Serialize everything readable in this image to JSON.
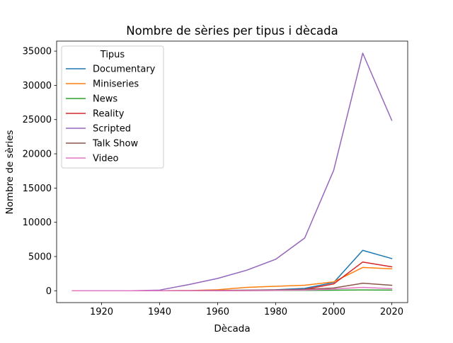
{
  "chart_data": {
    "type": "line",
    "title": "Nombre de sèries per tipus i dècada",
    "xlabel": "Dècada",
    "ylabel": "Nombre de sèries",
    "x": [
      1910,
      1920,
      1930,
      1940,
      1950,
      1960,
      1970,
      1980,
      1990,
      2000,
      2010,
      2020
    ],
    "xlim": [
      1904.5,
      2025.5
    ],
    "ylim": [
      -1730,
      36460
    ],
    "xticks": [
      1920,
      1940,
      1960,
      1980,
      2000,
      2020
    ],
    "yticks": [
      0,
      5000,
      10000,
      15000,
      20000,
      25000,
      30000,
      35000
    ],
    "grid": false,
    "legend": {
      "title": "Tipus",
      "placement": "upper-left"
    },
    "series": [
      {
        "name": "Documentary",
        "color": "#1f77b4",
        "values": [
          0,
          0,
          0,
          10,
          20,
          40,
          80,
          150,
          350,
          1200,
          5900,
          4700
        ]
      },
      {
        "name": "Miniseries",
        "color": "#ff7f0e",
        "values": [
          0,
          0,
          0,
          10,
          30,
          150,
          500,
          650,
          800,
          1300,
          3400,
          3200
        ]
      },
      {
        "name": "News",
        "color": "#2ca02c",
        "values": [
          0,
          0,
          0,
          5,
          10,
          20,
          30,
          40,
          50,
          80,
          120,
          100
        ]
      },
      {
        "name": "Reality",
        "color": "#d62728",
        "values": [
          0,
          0,
          0,
          5,
          10,
          20,
          40,
          80,
          200,
          1000,
          4200,
          3500
        ]
      },
      {
        "name": "Scripted",
        "color": "#9467bd",
        "values": [
          0,
          0,
          10,
          100,
          900,
          1800,
          3000,
          4600,
          7700,
          17600,
          34700,
          24900
        ]
      },
      {
        "name": "Talk Show",
        "color": "#8c564b",
        "values": [
          0,
          0,
          0,
          5,
          20,
          50,
          80,
          120,
          200,
          400,
          1100,
          800
        ]
      },
      {
        "name": "Video",
        "color": "#e377c2",
        "values": [
          0,
          0,
          0,
          5,
          10,
          20,
          30,
          50,
          100,
          250,
          500,
          300
        ]
      }
    ]
  }
}
